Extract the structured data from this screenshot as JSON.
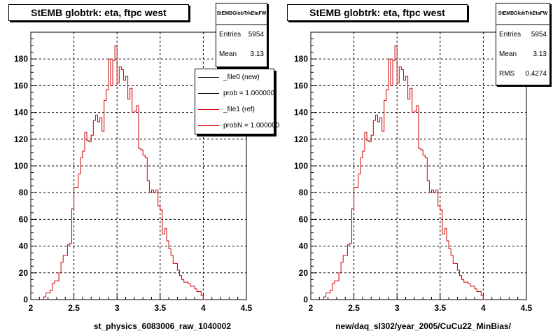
{
  "colors": {
    "new": "#000000",
    "ref": "#cc0000"
  },
  "footer_text": "",
  "chart_data": [
    {
      "type": "histogram",
      "title": "StEMB globtrk: eta, ftpc west",
      "xlabel": "st_physics_6083006_raw_1040002",
      "xlim": [
        2,
        4.5
      ],
      "ylim": [
        0,
        200
      ],
      "x_ticks": [
        "2",
        "2.5",
        "3",
        "3.5",
        "4",
        "4.5"
      ],
      "y_ticks": [
        "0",
        "20",
        "40",
        "60",
        "80",
        "100",
        "120",
        "140",
        "160",
        "180"
      ],
      "grid": true,
      "stats": {
        "name": "StEMBGlobTrkEtaFW",
        "rows": [
          {
            "label": "Entries",
            "value": "5954"
          },
          {
            "label": "Mean",
            "value": "3.13"
          }
        ]
      },
      "legend": {
        "placement": "top-right",
        "entries": [
          {
            "label": "_file0 (new)",
            "color": "#000000"
          },
          {
            "label": "prob = 1.000000",
            "color": "#000000"
          },
          {
            "label": "_file1 (ref)",
            "color": "#cc0000"
          },
          {
            "label": "probN = 1.000000",
            "color": "#cc0000"
          }
        ]
      },
      "bin_width": 0.025,
      "bins_x_start": 2.15,
      "series": [
        {
          "color": "#cc0000",
          "values": [
            2,
            5,
            5,
            7,
            12,
            14,
            14,
            20,
            28,
            33,
            33,
            41,
            42,
            68,
            84,
            84,
            94,
            106,
            111,
            125,
            119,
            118,
            123,
            134,
            138,
            133,
            136,
            126,
            149,
            157,
            180,
            160,
            179,
            190,
            162,
            174,
            172,
            164,
            167,
            150,
            158,
            140,
            141,
            145,
            113,
            112,
            108,
            106,
            89,
            80,
            82,
            80,
            82,
            70,
            67,
            49,
            53,
            44,
            38,
            33,
            27,
            27,
            22,
            18,
            15,
            13,
            13,
            12,
            10,
            10,
            8,
            6,
            6,
            3,
            0
          ]
        }
      ]
    },
    {
      "type": "histogram",
      "title": "StEMB globtrk: eta, ftpc west",
      "xlabel": "new/daq_sl302/year_2005/CuCu22_MinBias/",
      "xlim": [
        2,
        4.5
      ],
      "ylim": [
        0,
        200
      ],
      "x_ticks": [
        "2",
        "2.5",
        "3",
        "3.5",
        "4",
        "4.5"
      ],
      "y_ticks": [
        "0",
        "20",
        "40",
        "60",
        "80",
        "100",
        "120",
        "140",
        "160",
        "180"
      ],
      "grid": true,
      "stats": {
        "name": "StEMBGlobTrkEtaFW",
        "rows": [
          {
            "label": "Entries",
            "value": "5954"
          },
          {
            "label": "Mean",
            "value": "3.13"
          },
          {
            "label": "RMS",
            "value": "0.4274"
          }
        ]
      },
      "bin_width": 0.025,
      "bins_x_start": 2.15,
      "series": [
        {
          "color": "#cc0000",
          "values": [
            2,
            5,
            5,
            7,
            12,
            14,
            14,
            20,
            28,
            33,
            33,
            41,
            42,
            68,
            84,
            84,
            94,
            106,
            111,
            125,
            119,
            118,
            123,
            134,
            138,
            133,
            136,
            126,
            149,
            157,
            180,
            160,
            179,
            190,
            162,
            174,
            172,
            164,
            167,
            150,
            158,
            140,
            141,
            145,
            113,
            112,
            108,
            106,
            89,
            80,
            82,
            80,
            82,
            70,
            67,
            49,
            53,
            44,
            38,
            33,
            27,
            27,
            22,
            18,
            15,
            13,
            13,
            12,
            10,
            10,
            8,
            6,
            6,
            3,
            0
          ]
        }
      ]
    }
  ]
}
